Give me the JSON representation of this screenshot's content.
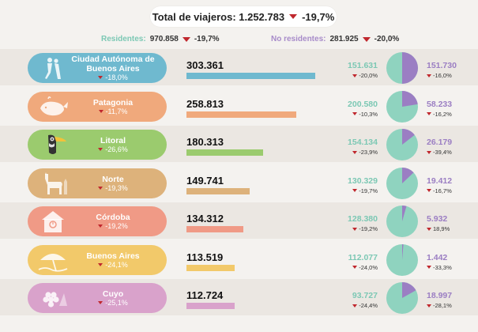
{
  "header": {
    "total_label": "Total de viajeros: 1.252.783",
    "total_change": "-19,7%"
  },
  "legend": {
    "residentes_label": "Residentes:",
    "residentes_value": "970.858",
    "residentes_change": "-19,7%",
    "noresidentes_label": "No residentes:",
    "noresidentes_value": "281.925",
    "noresidentes_change": "-20,0%"
  },
  "colors": {
    "residentes": "#8fd3bf",
    "noresidentes": "#9b7ec3",
    "decrease": "#c0272d"
  },
  "chart_data": {
    "type": "bar",
    "title": "Total de viajeros: 1.252.783",
    "categories": [
      "Ciudad Autónoma de Buenos Aires",
      "Patagonia",
      "Litoral",
      "Norte",
      "Córdoba",
      "Buenos Aires",
      "Cuyo"
    ],
    "series": [
      {
        "name": "Total",
        "values": [
          303361,
          258813,
          180313,
          149741,
          134312,
          113519,
          112724
        ]
      },
      {
        "name": "Residentes",
        "values": [
          151631,
          200580,
          154134,
          130329,
          128380,
          112077,
          93727
        ]
      },
      {
        "name": "No residentes",
        "values": [
          151730,
          58233,
          26179,
          19412,
          5932,
          1442,
          18997
        ]
      }
    ],
    "regions": [
      {
        "name": "Ciudad Autónoma de Buenos Aires",
        "change": "-18,0%",
        "total": 303361,
        "total_label": "303.361",
        "res": 151631,
        "res_label": "151.631",
        "res_change": "-20,0%",
        "nores": 151730,
        "nores_label": "151.730",
        "nores_change": "-16,0%",
        "color": "#6fb9cf",
        "icon": "tango-dancers-icon"
      },
      {
        "name": "Patagonia",
        "change": "-11,7%",
        "total": 258813,
        "total_label": "258.813",
        "res": 200580,
        "res_label": "200.580",
        "res_change": "-10,3%",
        "nores": 58233,
        "nores_label": "58.233",
        "nores_change": "-16,2%",
        "color": "#f0a97c",
        "icon": "whale-icon"
      },
      {
        "name": "Litoral",
        "change": "-26,6%",
        "total": 180313,
        "total_label": "180.313",
        "res": 154134,
        "res_label": "154.134",
        "res_change": "-23,9%",
        "nores": 26179,
        "nores_label": "26.179",
        "nores_change": "-39,4%",
        "color": "#9bcb6e",
        "icon": "toucan-icon"
      },
      {
        "name": "Norte",
        "change": "-19,3%",
        "total": 149741,
        "total_label": "149.741",
        "res": 130329,
        "res_label": "130.329",
        "res_change": "-19,7%",
        "nores": 19412,
        "nores_label": "19.412",
        "nores_change": "-16,7%",
        "color": "#ddb27b",
        "icon": "llama-icon"
      },
      {
        "name": "Córdoba",
        "change": "-19,2%",
        "total": 134312,
        "total_label": "134.312",
        "res": 128380,
        "res_label": "128.380",
        "res_change": "-19,2%",
        "nores": 5932,
        "nores_label": "5.932",
        "nores_change": "18,9%",
        "color": "#f09a86",
        "icon": "cuckoo-clock-icon"
      },
      {
        "name": "Buenos Aires",
        "change": "-24,1%",
        "total": 113519,
        "total_label": "113.519",
        "res": 112077,
        "res_label": "112.077",
        "res_change": "-24,0%",
        "nores": 1442,
        "nores_label": "1.442",
        "nores_change": "-33,3%",
        "color": "#f2c96a",
        "icon": "beach-umbrella-icon"
      },
      {
        "name": "Cuyo",
        "change": "-25,1%",
        "total": 112724,
        "total_label": "112.724",
        "res": 93727,
        "res_label": "93.727",
        "res_change": "-24,4%",
        "nores": 18997,
        "nores_label": "18.997",
        "nores_change": "-28,1%",
        "color": "#d9a2cb",
        "icon": "grapes-icon"
      }
    ]
  }
}
